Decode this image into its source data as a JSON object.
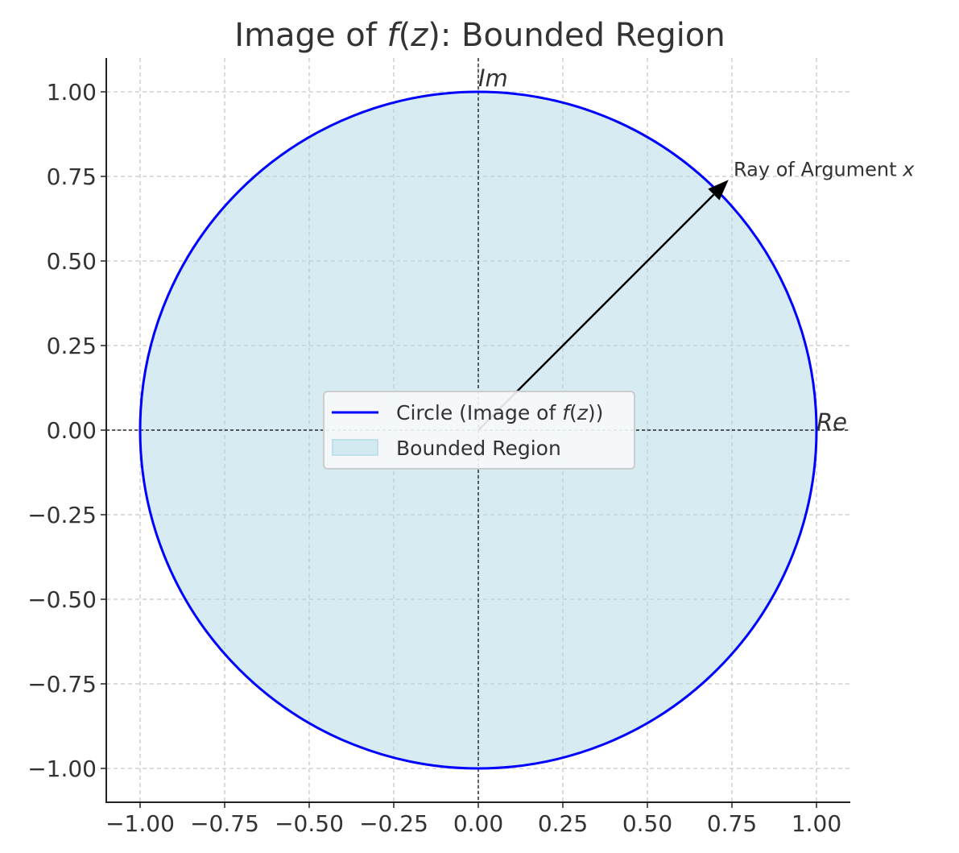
{
  "chart_data": {
    "type": "line",
    "title": "Image of f(z): Bounded Region",
    "title_parts": [
      "Image of ",
      "f",
      "(",
      "z",
      "): Bounded Region"
    ],
    "xlabel": "",
    "ylabel": "",
    "xlim": [
      -1.1,
      1.1
    ],
    "ylim": [
      -1.1,
      1.1
    ],
    "grid": true,
    "xticks": [
      -1.0,
      -0.75,
      -0.5,
      -0.25,
      0.0,
      0.25,
      0.5,
      0.75,
      1.0
    ],
    "xtick_labels": [
      "−1.00",
      "−0.75",
      "−0.50",
      "−0.25",
      "0.00",
      "0.25",
      "0.50",
      "0.75",
      "1.00"
    ],
    "yticks": [
      1.0,
      0.75,
      0.5,
      0.25,
      0.0,
      -0.25,
      -0.5,
      -0.75,
      -1.0
    ],
    "ytick_labels": [
      "1.00",
      "0.75",
      "0.50",
      "0.25",
      "0.00",
      "−0.25",
      "−0.50",
      "−0.75",
      "−1.00"
    ],
    "series": [
      {
        "name": "Circle (Image of f(z))",
        "kind": "circle",
        "center": [
          0,
          0
        ],
        "radius": 1.0,
        "color": "#0000ff"
      },
      {
        "name": "Bounded Region",
        "kind": "fill",
        "center": [
          0,
          0
        ],
        "radius": 1.0,
        "color": "#add8e6",
        "alpha": 0.5
      }
    ],
    "legend": {
      "placement": "center",
      "entries": [
        {
          "parts": [
            "Circle (Image of ",
            "f",
            "(",
            "z",
            "))"
          ]
        },
        {
          "parts": [
            "Bounded Region"
          ]
        }
      ]
    },
    "annotations": [
      {
        "text": "Ray of Argument ",
        "italic": "x",
        "arrow_from": [
          0,
          0
        ],
        "arrow_to": [
          0.74,
          0.74
        ],
        "text_at": [
          0.75,
          0.77
        ]
      },
      {
        "text": "Im",
        "at": [
          0.0,
          1.04
        ]
      },
      {
        "text": "Re",
        "at": [
          1.0,
          0.0
        ]
      }
    ],
    "reference_lines": {
      "x": 0,
      "y": 0
    }
  }
}
